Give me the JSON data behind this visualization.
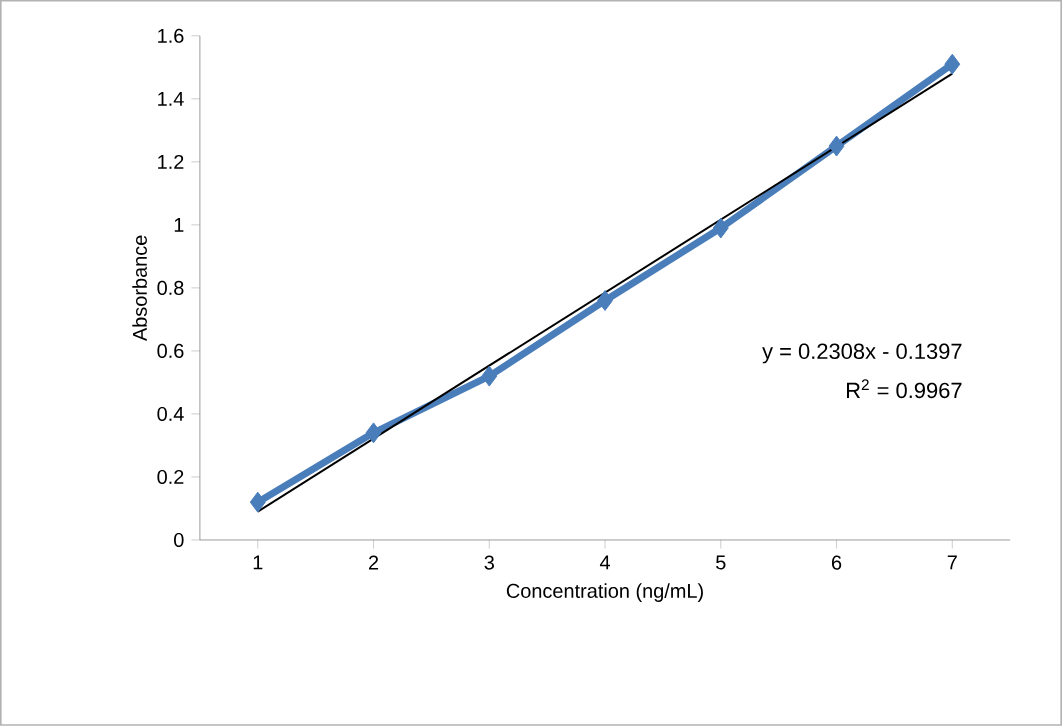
{
  "chart_data": {
    "type": "line",
    "xlabel": "Concentration (ng/mL)",
    "ylabel": "Absorbance",
    "xlim": [
      0.5,
      7.5
    ],
    "xticks": [
      1,
      2,
      3,
      4,
      5,
      6,
      7
    ],
    "ylim": [
      0,
      1.6
    ],
    "yticks": [
      0,
      0.2,
      0.4,
      0.6,
      0.8,
      1,
      1.2,
      1.4,
      1.6
    ],
    "marker": "diamond",
    "series": [
      {
        "color": "#4a7ebb",
        "x": [
          1,
          2,
          3,
          4,
          5,
          6,
          7
        ],
        "values": [
          0.12,
          0.34,
          0.52,
          0.76,
          0.99,
          1.25,
          1.51
        ]
      },
      {
        "type": "line",
        "color": "#000000",
        "marker": "none",
        "x": [
          1,
          7
        ],
        "values": [
          0.09,
          1.48
        ]
      }
    ],
    "annotations": [
      "y = 0.2308x - 0.1397",
      "R$^{2}$ = 0.9967"
    ]
  }
}
